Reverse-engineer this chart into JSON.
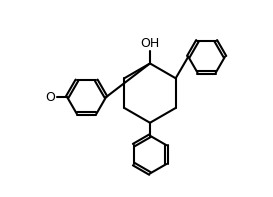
{
  "background_color": "#ffffff",
  "line_color": "#000000",
  "line_width": 1.5,
  "font_size": 9,
  "figsize": [
    2.73,
    1.97
  ],
  "dpi": 100
}
